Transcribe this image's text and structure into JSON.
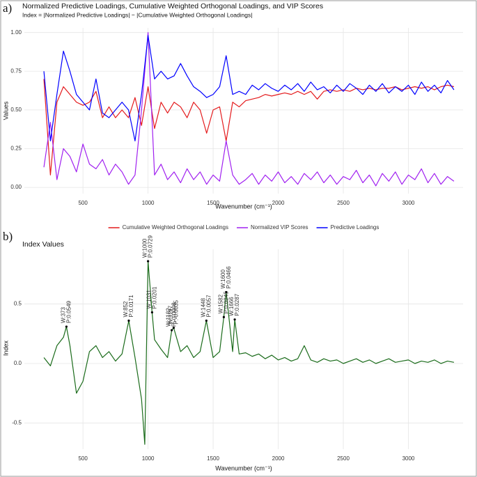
{
  "chart_data": [
    {
      "type": "line",
      "panel_label": "a)",
      "title": "Normalized Predictive Loadings, Cumulative Weighted Orthogonal Loadings, and VIP Scores",
      "subtitle": "Index = |Normalized Predictive Loadings| − |Cumulative Weighted Orthogonal Loadings|",
      "x_label": "Wavenumber (cm⁻¹)",
      "y_label": "Values",
      "x": [
        200,
        250,
        300,
        350,
        400,
        450,
        500,
        550,
        600,
        650,
        700,
        750,
        800,
        850,
        900,
        950,
        1000,
        1050,
        1100,
        1150,
        1200,
        1250,
        1300,
        1350,
        1400,
        1450,
        1500,
        1550,
        1600,
        1650,
        1700,
        1750,
        1800,
        1850,
        1900,
        1950,
        2000,
        2050,
        2100,
        2150,
        2200,
        2250,
        2300,
        2350,
        2400,
        2450,
        2500,
        2550,
        2600,
        2650,
        2700,
        2750,
        2800,
        2850,
        2900,
        2950,
        3000,
        3050,
        3100,
        3150,
        3200,
        3250,
        3300,
        3350
      ],
      "series": [
        {
          "name": "Cumulative Weighted Orthogonal Loadings",
          "color": "#e41a1c",
          "values": [
            0.7,
            0.08,
            0.55,
            0.65,
            0.6,
            0.55,
            0.53,
            0.55,
            0.62,
            0.45,
            0.52,
            0.45,
            0.5,
            0.45,
            0.58,
            0.4,
            0.65,
            0.38,
            0.55,
            0.48,
            0.55,
            0.52,
            0.45,
            0.55,
            0.5,
            0.35,
            0.5,
            0.52,
            0.3,
            0.55,
            0.52,
            0.56,
            0.57,
            0.58,
            0.6,
            0.59,
            0.6,
            0.61,
            0.6,
            0.62,
            0.6,
            0.62,
            0.57,
            0.62,
            0.63,
            0.62,
            0.63,
            0.62,
            0.64,
            0.63,
            0.64,
            0.63,
            0.64,
            0.64,
            0.65,
            0.63,
            0.64,
            0.65,
            0.64,
            0.65,
            0.63,
            0.65,
            0.66,
            0.65
          ]
        },
        {
          "name": "Normalized VIP Scores",
          "color": "#a020f0",
          "values": [
            0.13,
            0.42,
            0.05,
            0.25,
            0.2,
            0.1,
            0.28,
            0.15,
            0.12,
            0.18,
            0.08,
            0.15,
            0.1,
            0.02,
            0.08,
            0.5,
            1.0,
            0.08,
            0.15,
            0.05,
            0.1,
            0.03,
            0.12,
            0.05,
            0.1,
            0.02,
            0.08,
            0.04,
            0.3,
            0.08,
            0.02,
            0.05,
            0.09,
            0.02,
            0.08,
            0.04,
            0.1,
            0.03,
            0.07,
            0.02,
            0.09,
            0.05,
            0.1,
            0.03,
            0.08,
            0.02,
            0.07,
            0.05,
            0.11,
            0.03,
            0.08,
            0.01,
            0.09,
            0.04,
            0.1,
            0.02,
            0.08,
            0.05,
            0.12,
            0.03,
            0.09,
            0.02,
            0.07,
            0.04
          ]
        },
        {
          "name": "Predictive Loadings",
          "color": "#0000ff",
          "values": [
            0.75,
            0.3,
            0.6,
            0.88,
            0.75,
            0.6,
            0.55,
            0.5,
            0.7,
            0.48,
            0.45,
            0.5,
            0.55,
            0.5,
            0.3,
            0.6,
            0.98,
            0.7,
            0.75,
            0.7,
            0.72,
            0.8,
            0.72,
            0.65,
            0.62,
            0.58,
            0.6,
            0.65,
            0.85,
            0.6,
            0.62,
            0.6,
            0.66,
            0.63,
            0.67,
            0.64,
            0.62,
            0.66,
            0.63,
            0.67,
            0.62,
            0.68,
            0.63,
            0.65,
            0.61,
            0.66,
            0.62,
            0.67,
            0.64,
            0.6,
            0.66,
            0.62,
            0.67,
            0.61,
            0.65,
            0.62,
            0.66,
            0.6,
            0.68,
            0.62,
            0.66,
            0.61,
            0.69,
            0.63
          ]
        }
      ],
      "xlim": [
        50,
        3420
      ],
      "ylim": [
        -0.04,
        1.03
      ],
      "xticks": [
        500,
        1000,
        1500,
        2000,
        2500,
        3000
      ],
      "yticks": [
        {
          "value": 0,
          "label": "0.00"
        },
        {
          "value": 0.25,
          "label": "0.25"
        },
        {
          "value": 0.5,
          "label": "0.50"
        },
        {
          "value": 0.75,
          "label": "0.75"
        },
        {
          "value": 1,
          "label": "1.00"
        }
      ],
      "grid": true,
      "legend": "bottom"
    },
    {
      "type": "line",
      "panel_label": "b)",
      "title": "Index Values",
      "x_label": "Wavenumber (cm⁻¹)",
      "y_label": "Index",
      "color": "#1a6b1a",
      "x": [
        200,
        250,
        300,
        350,
        373,
        400,
        450,
        500,
        550,
        600,
        650,
        700,
        750,
        800,
        852,
        900,
        950,
        975,
        1000,
        1031,
        1050,
        1100,
        1150,
        1182,
        1197,
        1250,
        1300,
        1350,
        1400,
        1448,
        1500,
        1550,
        1582,
        1600,
        1650,
        1666,
        1700,
        1750,
        1800,
        1850,
        1900,
        1950,
        2000,
        2050,
        2100,
        2150,
        2200,
        2250,
        2300,
        2350,
        2400,
        2450,
        2500,
        2550,
        2600,
        2650,
        2700,
        2750,
        2800,
        2850,
        2900,
        2950,
        3000,
        3050,
        3100,
        3150,
        3200,
        3250,
        3300,
        3350
      ],
      "values": [
        0.05,
        -0.02,
        0.15,
        0.22,
        0.31,
        0.15,
        -0.25,
        -0.15,
        0.1,
        0.15,
        0.05,
        0.1,
        0.02,
        0.08,
        0.36,
        0.05,
        -0.3,
        -0.68,
        0.86,
        0.43,
        0.2,
        0.12,
        0.05,
        0.28,
        0.3,
        0.1,
        0.15,
        0.05,
        0.1,
        0.36,
        0.05,
        0.1,
        0.39,
        0.6,
        0.1,
        0.37,
        0.08,
        0.09,
        0.06,
        0.08,
        0.04,
        0.07,
        0.03,
        0.05,
        0.02,
        0.04,
        0.15,
        0.03,
        0.01,
        0.04,
        0.02,
        0.03,
        0,
        0.02,
        0.04,
        0.01,
        0.03,
        0,
        0.02,
        0.04,
        0.01,
        0.02,
        0.03,
        0,
        0.02,
        0.01,
        0.03,
        0,
        0.02,
        0.01
      ],
      "annotations": [
        {
          "x": 373,
          "y": 0.31,
          "text": [
            "W:373",
            "P:0.0549"
          ]
        },
        {
          "x": 852,
          "y": 0.36,
          "text": [
            "W:852",
            "P:0.0171"
          ]
        },
        {
          "x": 1000,
          "y": 0.86,
          "text": [
            "W:1000",
            "P:0.0729"
          ]
        },
        {
          "x": 1031,
          "y": 0.43,
          "text": [
            "W:1031",
            "P:0.0201"
          ]
        },
        {
          "x": 1182,
          "y": 0.28,
          "text": [
            "W:1182",
            "P:-0.0008"
          ]
        },
        {
          "x": 1197,
          "y": 0.3,
          "text": [
            "W:1197",
            "P:-0.0035"
          ]
        },
        {
          "x": 1448,
          "y": 0.36,
          "text": [
            "W:1448",
            "P:0.0057"
          ]
        },
        {
          "x": 1582,
          "y": 0.39,
          "text": [
            "W:1582",
            "P:0.0245"
          ]
        },
        {
          "x": 1600,
          "y": 0.6,
          "text": [
            "W:1600",
            "P:0.0466"
          ]
        },
        {
          "x": 1666,
          "y": 0.37,
          "text": [
            "W:1666",
            "P:0.0287"
          ]
        }
      ],
      "xlim": [
        50,
        3420
      ],
      "ylim": [
        -0.72,
        0.96
      ],
      "xticks": [
        500,
        1000,
        1500,
        2000,
        2500,
        3000
      ],
      "yticks": [
        -0.5,
        {
          "value": 0,
          "label": "0.0"
        },
        0.5
      ],
      "grid": true
    }
  ]
}
